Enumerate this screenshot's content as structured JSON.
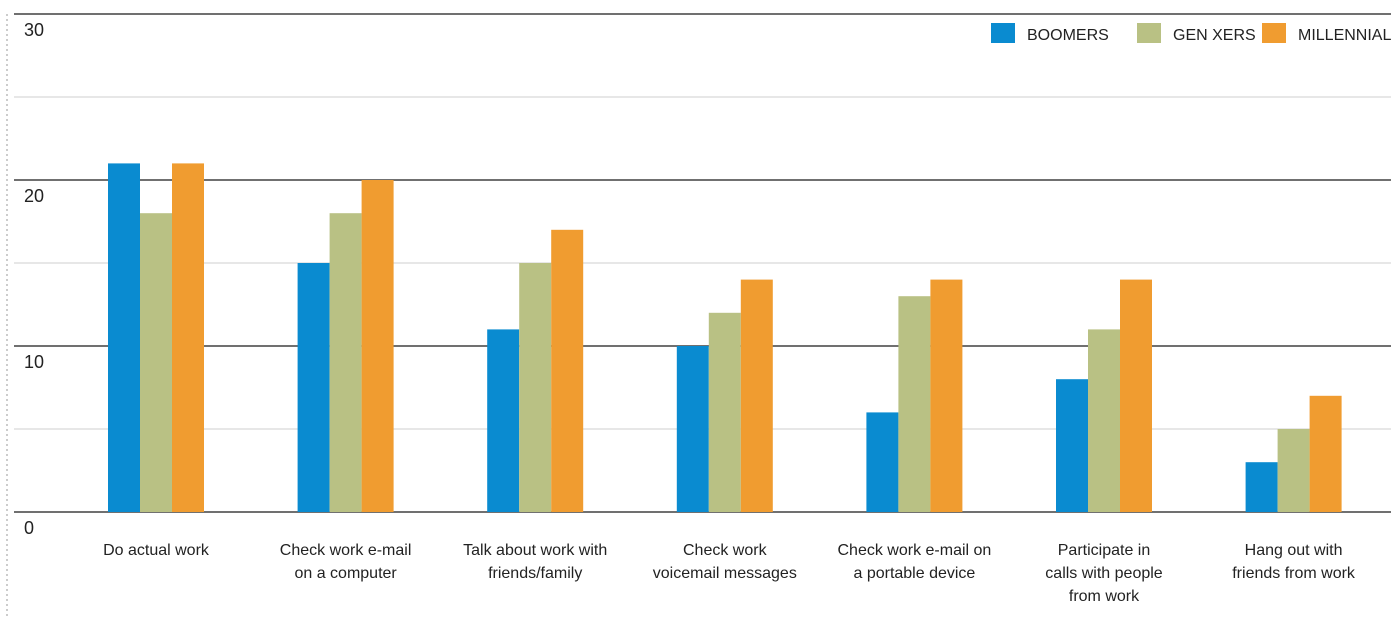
{
  "chart_data": {
    "type": "bar",
    "title": "",
    "xlabel": "",
    "ylabel": "",
    "ylim": [
      0,
      30
    ],
    "yticks": [
      0,
      10,
      20,
      30
    ],
    "grid": true,
    "legend_position": "top-right",
    "categories": [
      [
        "Do actual work"
      ],
      [
        "Check work e-mail",
        "on a computer"
      ],
      [
        "Talk about work with",
        "friends/family"
      ],
      [
        "Check work",
        "voicemail messages"
      ],
      [
        "Check work e-mail on",
        "a portable device"
      ],
      [
        "Participate in",
        "calls with people",
        "from work"
      ],
      [
        "Hang out with",
        "friends from work"
      ]
    ],
    "series": [
      {
        "name": "BOOMERS",
        "color": "#0a8bd0",
        "values": [
          21,
          15,
          11,
          10,
          6,
          8,
          3
        ]
      },
      {
        "name": "GEN XERS",
        "color": "#b9c184",
        "values": [
          18,
          18,
          15,
          12,
          13,
          11,
          5
        ]
      },
      {
        "name": "MILLENNIALS",
        "color": "#f09c30",
        "values": [
          21,
          20,
          17,
          14,
          14,
          14,
          7
        ]
      }
    ]
  }
}
